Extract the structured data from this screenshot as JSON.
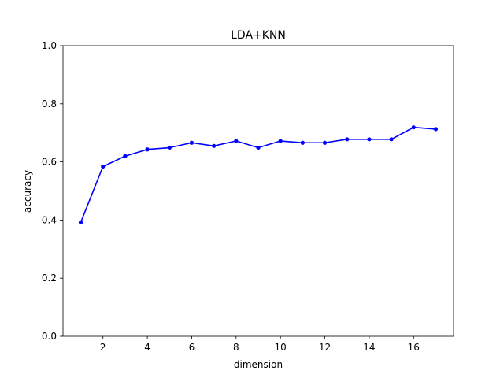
{
  "chart_data": {
    "type": "line",
    "title": "LDA+KNN",
    "xlabel": "dimension",
    "ylabel": "accuracy",
    "xlim": [
      0.2,
      17.8
    ],
    "ylim": [
      0.0,
      1.0
    ],
    "xticks": [
      2,
      4,
      6,
      8,
      10,
      12,
      14,
      16
    ],
    "yticks": [
      0.0,
      0.2,
      0.4,
      0.6,
      0.8,
      1.0
    ],
    "grid": false,
    "series": [
      {
        "color": "#0000ff",
        "marker": "circle",
        "x": [
          1,
          2,
          3,
          4,
          5,
          6,
          7,
          8,
          9,
          10,
          11,
          12,
          13,
          14,
          15,
          16,
          17
        ],
        "y": [
          0.392,
          0.584,
          0.62,
          0.643,
          0.649,
          0.666,
          0.655,
          0.672,
          0.649,
          0.672,
          0.666,
          0.666,
          0.678,
          0.678,
          0.678,
          0.719,
          0.713
        ]
      }
    ]
  }
}
